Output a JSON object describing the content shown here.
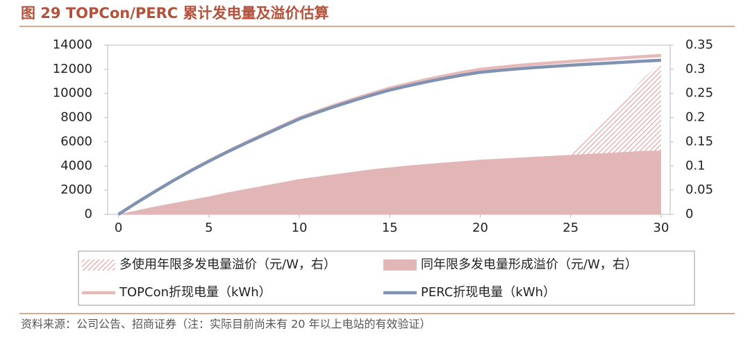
{
  "chart_data": {
    "type": "combo",
    "title": "图 29 TOPCon/PERC 累计发电量及溢价估算",
    "source": "资料来源：公司公告、招商证券（注：实际目前尚未有 20 年以上电站的有效验证）",
    "x": [
      0,
      1,
      2,
      3,
      4,
      5,
      6,
      7,
      8,
      9,
      10,
      11,
      12,
      13,
      14,
      15,
      16,
      17,
      18,
      19,
      20,
      21,
      22,
      23,
      24,
      25,
      26,
      27,
      28,
      29,
      30
    ],
    "xlim": [
      -0.6,
      30.5
    ],
    "xticks": [
      0,
      5,
      10,
      15,
      20,
      25,
      30
    ],
    "ylim": [
      0,
      14000
    ],
    "yticks": [
      0,
      2000,
      4000,
      6000,
      8000,
      10000,
      12000,
      14000
    ],
    "y2lim": [
      0,
      0.35
    ],
    "y2ticks": [
      0,
      0.05,
      0.1,
      0.15,
      0.2,
      0.25,
      0.3,
      0.35
    ],
    "series": [
      {
        "name": "多使用年限多发电量溢价（元/W，右）",
        "type": "hatched-area",
        "axis": "y2",
        "stacked_on": 1,
        "color": "#e07878",
        "values": [
          null,
          null,
          null,
          null,
          null,
          null,
          null,
          null,
          null,
          null,
          null,
          null,
          null,
          null,
          null,
          null,
          null,
          null,
          null,
          null,
          null,
          null,
          null,
          null,
          null,
          0,
          0.035,
          0.073,
          0.111,
          0.149,
          0.183
        ]
      },
      {
        "name": "同年限多发电量形成溢价（元/W，右）",
        "type": "area",
        "axis": "y2",
        "color": "#e2b6b6",
        "values": [
          0,
          0.008,
          0.016,
          0.023,
          0.03,
          0.037,
          0.045,
          0.052,
          0.059,
          0.066,
          0.073,
          0.078,
          0.083,
          0.088,
          0.093,
          0.097,
          0.101,
          0.104,
          0.107,
          0.11,
          0.113,
          0.115,
          0.117,
          0.119,
          0.121,
          0.123,
          0.125,
          0.127,
          0.129,
          0.131,
          0.132
        ]
      },
      {
        "name": "TOPCon折现电量（kWh）",
        "type": "line",
        "color": "#e6b9b9",
        "values": [
          0,
          960,
          1880,
          2770,
          3620,
          4420,
          5180,
          5900,
          6600,
          7290,
          7975,
          8530,
          9050,
          9540,
          10000,
          10440,
          10800,
          11140,
          11450,
          11740,
          11990,
          12150,
          12300,
          12430,
          12540,
          12650,
          12750,
          12850,
          12950,
          13050,
          13140
        ]
      },
      {
        "name": "PERC折现电量（kWh）",
        "type": "line",
        "color": "#7f92b2",
        "values": [
          0,
          959,
          1876,
          2762,
          3606,
          4398,
          5149,
          5859,
          6547,
          7224,
          7895,
          8436,
          8941,
          9416,
          9860,
          10283,
          10627,
          10951,
          11244,
          11517,
          11750,
          11895,
          12029,
          12144,
          12239,
          12334,
          12419,
          12503,
          12587,
          12671,
          12746
        ]
      }
    ]
  }
}
